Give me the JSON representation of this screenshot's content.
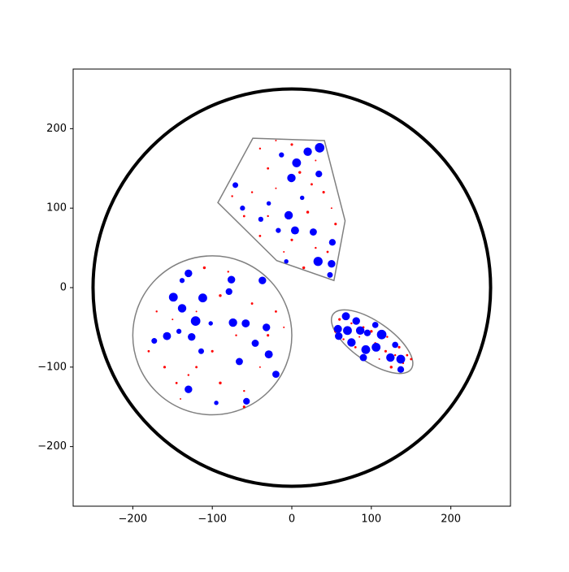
{
  "chart_data": {
    "type": "scatter",
    "xlim": [
      -275,
      275
    ],
    "ylim": [
      -275,
      275
    ],
    "xticks": [
      {
        "value": -200,
        "label": "−200"
      },
      {
        "value": -100,
        "label": "−100"
      },
      0,
      100,
      200
    ],
    "yticks": [
      {
        "value": -200,
        "label": "−200"
      },
      {
        "value": -100,
        "label": "−100"
      },
      0,
      100,
      200
    ],
    "shapes": [
      {
        "kind": "circle",
        "center": [
          0,
          0
        ],
        "radius": 250,
        "color": "#000000",
        "linewidth": 4
      },
      {
        "kind": "circle",
        "center": [
          -100,
          -60
        ],
        "radius": 100,
        "color": "#808080",
        "linewidth": 1.5
      },
      {
        "kind": "polygon",
        "points": [
          [
            -49,
            188
          ],
          [
            41,
            185
          ],
          [
            67,
            84
          ],
          [
            53,
            9
          ],
          [
            -19,
            34
          ],
          [
            -93,
            107
          ]
        ],
        "color": "#808080",
        "linewidth": 1.5
      },
      {
        "kind": "ellipse",
        "center": [
          101,
          -68
        ],
        "radii": [
          60,
          25
        ],
        "angle": -35,
        "color": "#808080",
        "linewidth": 1.5
      }
    ],
    "series": [
      {
        "name": "red",
        "color": "#ff0000",
        "x": [
          -170,
          -160,
          -140,
          -120,
          -90,
          -60,
          -40,
          -30,
          -50,
          -80,
          -110,
          -150,
          -180,
          -100,
          -70,
          -120,
          -90,
          -20,
          -130,
          -60,
          -10,
          -145,
          -40,
          0,
          30,
          -30,
          10,
          -50,
          -20,
          40,
          -60,
          -30,
          20,
          50,
          -40,
          0,
          30,
          -10,
          15,
          45,
          -75,
          55,
          -20,
          25,
          60,
          75,
          90,
          100,
          120,
          135,
          145,
          140,
          125,
          110,
          95,
          80,
          65,
          55,
          85,
          105,
          118,
          130,
          150,
          72
        ],
        "y": [
          -30,
          -100,
          -140,
          -100,
          -120,
          -130,
          -100,
          -60,
          -20,
          20,
          25,
          -40,
          -80,
          -80,
          -60,
          -30,
          -10,
          -30,
          -110,
          -150,
          -50,
          -120,
          175,
          180,
          160,
          150,
          145,
          120,
          125,
          120,
          90,
          90,
          95,
          100,
          65,
          60,
          50,
          45,
          25,
          45,
          115,
          80,
          185,
          130,
          -40,
          -45,
          -50,
          -55,
          -62,
          -75,
          -85,
          -95,
          -100,
          -90,
          -80,
          -75,
          -65,
          -55,
          -62,
          -70,
          -80,
          -85,
          -90,
          -58
        ],
        "sizes": [
          3,
          5,
          2,
          4,
          6,
          3,
          2,
          5,
          4,
          3,
          6,
          2,
          4,
          5,
          3,
          2,
          6,
          4,
          3,
          5,
          2,
          4,
          3,
          5,
          2,
          4,
          6,
          3,
          2,
          5,
          4,
          3,
          6,
          2,
          4,
          5,
          3,
          2,
          6,
          4,
          3,
          5,
          2,
          4,
          5,
          3,
          4,
          6,
          3,
          5,
          4,
          3,
          6,
          2,
          5,
          4,
          3,
          6,
          2,
          4,
          5,
          3,
          4,
          2
        ]
      },
      {
        "name": "blue",
        "color": "#0000ff",
        "x": [
          -130,
          -149,
          -112,
          -138,
          -121,
          -157,
          -142,
          -126,
          -102,
          -74,
          -58,
          -37,
          -46,
          -29,
          -66,
          -20,
          -130,
          -57,
          -76,
          -79,
          -32,
          -114,
          -138,
          -173,
          -95,
          35,
          20,
          6,
          -0.5,
          34,
          -4,
          4,
          27,
          33,
          50,
          51,
          -17,
          -39,
          -62,
          -71,
          -13,
          13,
          48,
          -29,
          -7,
          68,
          58,
          70,
          86,
          113,
          59,
          75,
          93,
          106,
          124,
          137,
          137,
          95,
          81,
          105,
          130,
          90
        ],
        "y": [
          18,
          -12,
          -13,
          -26,
          -42,
          -61,
          -55,
          -62,
          -45,
          -44,
          -45,
          9,
          -70,
          -84,
          -93,
          -109,
          -128,
          -143,
          10,
          -5,
          -50,
          -80,
          9,
          -67,
          -145,
          176,
          171,
          157,
          138,
          143,
          91,
          72,
          70,
          33,
          30,
          57,
          72,
          86,
          100,
          129,
          167,
          113,
          16,
          106,
          33,
          -36,
          -52,
          -54,
          -54,
          -59,
          -61,
          -69,
          -78,
          -75,
          -88,
          -90,
          -103,
          -57,
          -42,
          -47,
          -72,
          -88
        ],
        "sizes": [
          45,
          60,
          60,
          55,
          70,
          50,
          20,
          45,
          15,
          55,
          50,
          45,
          40,
          50,
          40,
          40,
          45,
          35,
          45,
          35,
          45,
          25,
          20,
          25,
          15,
          70,
          55,
          60,
          55,
          35,
          55,
          50,
          40,
          65,
          45,
          35,
          20,
          20,
          20,
          25,
          20,
          15,
          25,
          15,
          15,
          50,
          50,
          60,
          55,
          70,
          45,
          55,
          60,
          60,
          55,
          60,
          35,
          35,
          45,
          30,
          30,
          40
        ]
      }
    ]
  }
}
